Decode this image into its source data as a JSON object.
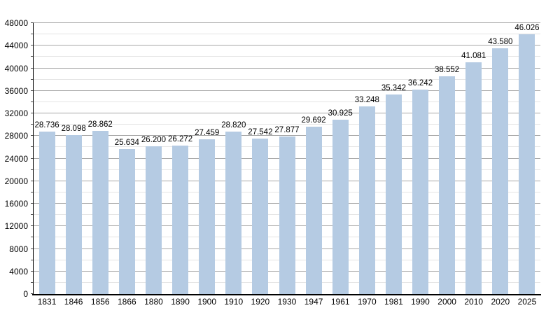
{
  "page": {
    "background": "#ffffff"
  },
  "chart_data": {
    "type": "bar",
    "title": "",
    "xlabel": "",
    "ylabel": "",
    "categories": [
      "1831",
      "1846",
      "1856",
      "1866",
      "1880",
      "1890",
      "1900",
      "1910",
      "1920",
      "1930",
      "1947",
      "1961",
      "1970",
      "1981",
      "1990",
      "2000",
      "2010",
      "2020",
      "2025"
    ],
    "values": [
      28736,
      28098,
      28862,
      25634,
      26200,
      26272,
      27459,
      28820,
      27542,
      27877,
      29692,
      30925,
      33248,
      35342,
      36242,
      38552,
      41081,
      43580,
      46026
    ],
    "value_labels": [
      "28.736",
      "28.098",
      "28.862",
      "25.634",
      "26.200",
      "26.272",
      "27.459",
      "28.820",
      "27.542",
      "27.877",
      "29.692",
      "30.925",
      "33.248",
      "35.342",
      "36.242",
      "38.552",
      "41.081",
      "43.580",
      "46.026"
    ],
    "y_tick_labels": [
      "0",
      "4000",
      "8000",
      "12000",
      "16000",
      "20000",
      "24000",
      "28000",
      "32000",
      "36000",
      "40000",
      "44000",
      "48000"
    ],
    "ylim": [
      0,
      48000
    ],
    "y_major_step": 4000,
    "y_minor_step": 2000,
    "grid": "horizontal, major and minor",
    "legend": "none",
    "bar_color": "#b5cbe3",
    "axis_color": "#000000",
    "major_grid_color": "#a6a6a6",
    "minor_grid_color": "#e4e4e4",
    "label_color": "#000000"
  }
}
